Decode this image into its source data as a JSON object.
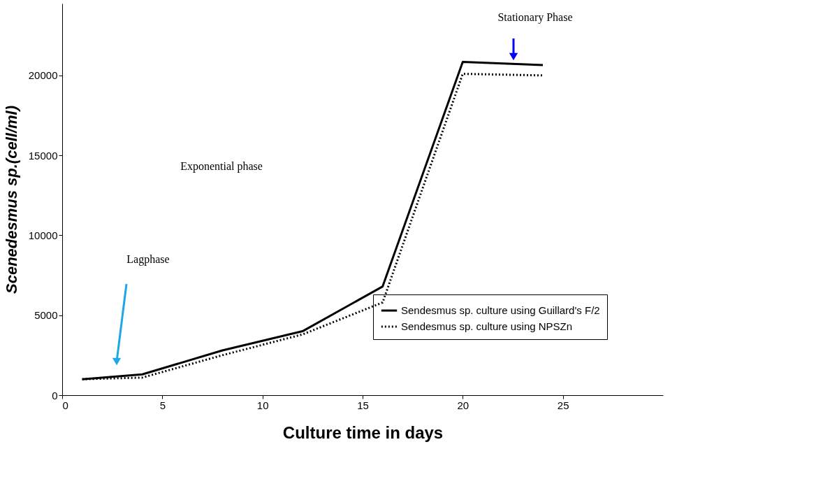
{
  "chart_data": {
    "type": "line",
    "xlabel": "Culture time in days",
    "ylabel": "Scenedesmus sp.(cell/ml)",
    "x": [
      1,
      4,
      8,
      12,
      16,
      20,
      24
    ],
    "series": [
      {
        "name": "Sendesmus sp. culture using Guillard's F/2",
        "color": "#000000",
        "line_style": "solid",
        "values": [
          1000,
          1300,
          2800,
          4000,
          6800,
          20850,
          20650
        ]
      },
      {
        "name": "Sendesmus sp. culture using NPSZn",
        "color": "#000000",
        "line_style": "dotted",
        "values": [
          1000,
          1100,
          2500,
          3800,
          5800,
          20100,
          20000
        ]
      }
    ],
    "xlim": [
      0,
      30
    ],
    "xticks": [
      0,
      5,
      10,
      15,
      20,
      25
    ],
    "ylim": [
      0,
      24500
    ],
    "yticks": [
      0,
      5000,
      10000,
      15000,
      20000
    ],
    "grid": false,
    "legend": "bottom right",
    "marker": "none",
    "annotations": [
      "Lagphase",
      "Exponential phase",
      "Stationary Phase"
    ]
  }
}
